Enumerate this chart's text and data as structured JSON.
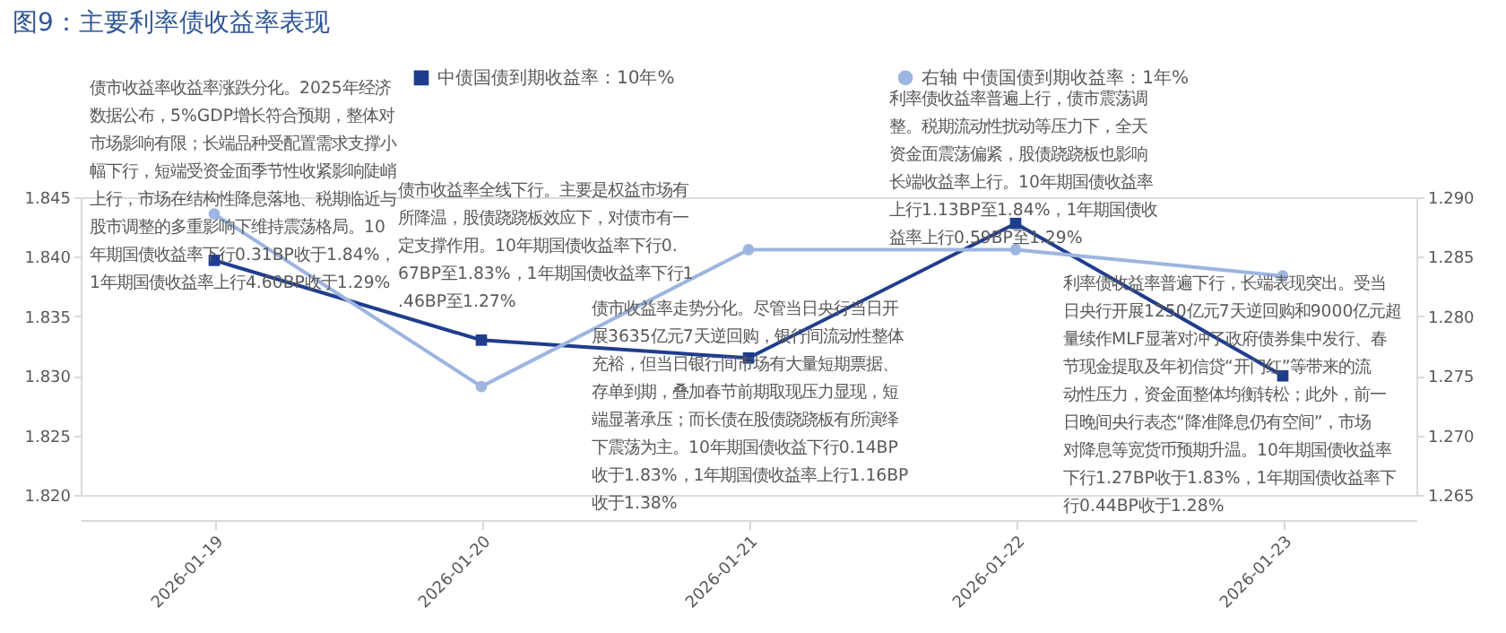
{
  "chart_data": {
    "type": "line",
    "title": "图9：主要利率债收益率表现",
    "categories": [
      "2026-01-19",
      "2026-01-20",
      "2026-01-21",
      "2026-01-22",
      "2026-01-23"
    ],
    "series": [
      {
        "name": "中债国债到期收益率：10年%",
        "color": "#1f3d8f",
        "marker": "square",
        "values": [
          1.8397,
          1.833,
          1.8315,
          1.8428,
          1.83
        ]
      },
      {
        "name": "右轴 中债国债到期收益率：1年%",
        "color": "#9db5e0",
        "marker": "circle",
        "axis": "y2",
        "values": [
          1.2886,
          1.2741,
          1.2856,
          1.2856,
          1.2834
        ]
      }
    ],
    "ylim": [
      1.82,
      1.845
    ],
    "yticks": [
      {
        "value": 1.82,
        "label": "1.820"
      },
      1.825,
      {
        "value": 1.83,
        "label": "1.830"
      },
      1.835,
      {
        "value": 1.84,
        "label": "1.840"
      },
      1.845
    ],
    "y2lim": [
      1.265,
      1.29
    ],
    "y2ticks": [
      1.265,
      {
        "value": 1.27,
        "label": "1.270"
      },
      1.275,
      {
        "value": 1.28,
        "label": "1.280"
      },
      1.285,
      {
        "value": 1.29,
        "label": "1.290"
      }
    ],
    "grid": false,
    "legend": "top",
    "line_style": "solid",
    "annotations": [
      "债市收益率收益率涨跌分化。2025年经济数据公布，5%GDP增长符合预期，整体对市场影响有限；长端品种受配置需求支撑小幅下行，短端受资金面季节性收紧影响陡峭上行，市场在结构性降息落地、税期临近与股市调整的多重影响下维持震荡格局。10年期国债收益率下行0.31BP收于1.84%，1年期国债收益率上行4.60BP收于1.29%",
      "债市收益率全线下行。主要是权益市场有所降温，股债跷跷板效应下，对债市有一定支撑作用。10年期国债收益率下行0.67BP至1.83%，1年期国债收益率下行1.46BP至1.27%",
      "债市收益率走势分化。尽管当日央行当日开展3635亿元7天逆回购，银行间流动性整体充裕，但当日银行间市场有大量短期票据、存单到期，叠加春节前期取现压力显现，短端显著承压；而长债在股债跷跷板有所演绎下震荡为主。10年期国债收益下行0.14BP收于1.83%，1年期国债收益率上行1.16BP收于1.38%",
      "利率债收益率普遍上行，债市震荡调整。税期流动性扰动等压力下，全天资金面震荡偏紧，股债跷跷板也影响长端收益率上行。10年期国债收益率上行1.13BP至1.84%，1年期国债收益率上行0.59BP至1.29%",
      "利率债收益率普遍下行，长端表现突出。受当日央行开展1250亿元7天逆回购和9000亿元超量续作MLF显著对冲了政府债券集中发行、春节现金提取及年初信贷“开门红”等带来的流动性压力，资金面整体均衡转松；此外，前一日晚间央行表态“降准降息仍有空间”，市场对降息等宽货币预期升温。10年期国债收益率下行1.27BP收于1.83%，1年期国债收益率下行0.44BP收于1.28%"
    ]
  }
}
